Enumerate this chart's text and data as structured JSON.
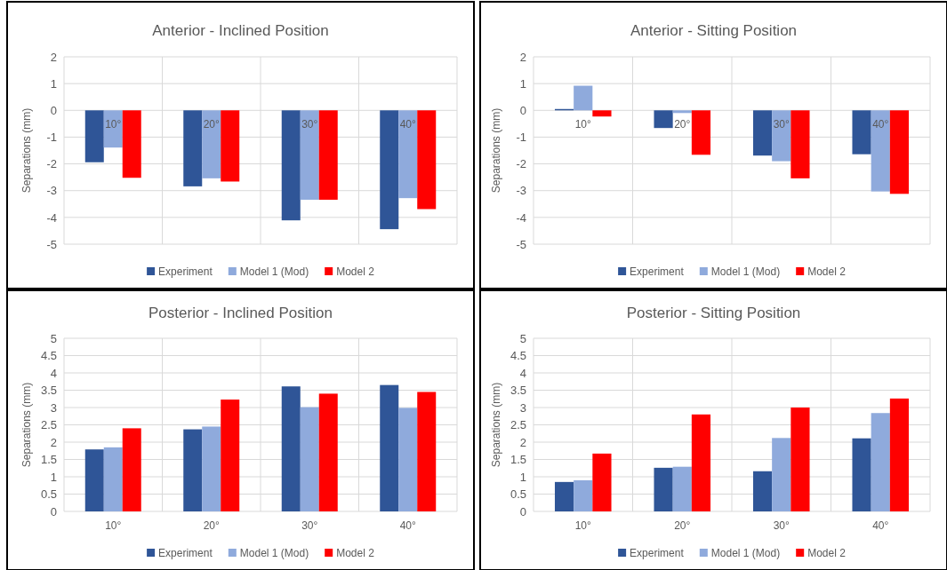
{
  "chart_data": [
    {
      "type": "bar",
      "title": "Anterior - Inclined Position",
      "ylabel": "Separations (mm)",
      "categories": [
        "10°",
        "20°",
        "30°",
        "40°"
      ],
      "ylim": [
        -5,
        2
      ],
      "yticks": [
        -5,
        -4,
        -3,
        -2,
        -1,
        0,
        1,
        2
      ],
      "grid": true,
      "legend": "bottom",
      "series": [
        {
          "name": "Experiment",
          "color": "#2f5597",
          "values": [
            -1.94,
            -2.84,
            -4.11,
            -4.44
          ]
        },
        {
          "name": "Model 1 (Mod)",
          "color": "#8faadc",
          "values": [
            -1.39,
            -2.54,
            -3.34,
            -3.28
          ]
        },
        {
          "name": "Model 2",
          "color": "#ff0000",
          "values": [
            -2.52,
            -2.66,
            -3.34,
            -3.69
          ]
        }
      ]
    },
    {
      "type": "bar",
      "title": "Anterior - Sitting Position",
      "ylabel": "Separations (mm)",
      "categories": [
        "10°",
        "20°",
        "30°",
        "40°"
      ],
      "ylim": [
        -5,
        2
      ],
      "yticks": [
        -5,
        -4,
        -3,
        -2,
        -1,
        0,
        1,
        2
      ],
      "grid": true,
      "legend": "bottom",
      "series": [
        {
          "name": "Experiment",
          "color": "#2f5597",
          "values": [
            0.05,
            -0.66,
            -1.69,
            -1.64
          ]
        },
        {
          "name": "Model 1 (Mod)",
          "color": "#8faadc",
          "values": [
            0.92,
            -0.1,
            -1.9,
            -3.03
          ]
        },
        {
          "name": "Model 2",
          "color": "#ff0000",
          "values": [
            -0.23,
            -1.66,
            -2.54,
            -3.12
          ]
        }
      ]
    },
    {
      "type": "bar",
      "title": "Posterior - Inclined Position",
      "ylabel": "Separations (mm)",
      "categories": [
        "10°",
        "20°",
        "30°",
        "40°"
      ],
      "ylim": [
        0,
        5
      ],
      "yticks": [
        0,
        0.5,
        1,
        1.5,
        2,
        2.5,
        3,
        3.5,
        4,
        4.5,
        5
      ],
      "grid": true,
      "legend": "bottom",
      "series": [
        {
          "name": "Experiment",
          "color": "#2f5597",
          "values": [
            1.79,
            2.37,
            3.61,
            3.65
          ]
        },
        {
          "name": "Model 1 (Mod)",
          "color": "#8faadc",
          "values": [
            1.85,
            2.45,
            3.01,
            2.99
          ]
        },
        {
          "name": "Model 2",
          "color": "#ff0000",
          "values": [
            2.4,
            3.23,
            3.4,
            3.45
          ]
        }
      ]
    },
    {
      "type": "bar",
      "title": "Posterior - Sitting Position",
      "ylabel": "Separations (mm)",
      "categories": [
        "10°",
        "20°",
        "30°",
        "40°"
      ],
      "ylim": [
        0,
        5
      ],
      "yticks": [
        0,
        0.5,
        1,
        1.5,
        2,
        2.5,
        3,
        3.5,
        4,
        4.5,
        5
      ],
      "grid": true,
      "legend": "bottom",
      "series": [
        {
          "name": "Experiment",
          "color": "#2f5597",
          "values": [
            0.85,
            1.26,
            1.16,
            2.11
          ]
        },
        {
          "name": "Model 1 (Mod)",
          "color": "#8faadc",
          "values": [
            0.9,
            1.29,
            2.12,
            2.84
          ]
        },
        {
          "name": "Model 2",
          "color": "#ff0000",
          "values": [
            1.67,
            2.8,
            3.0,
            3.26
          ]
        }
      ]
    }
  ]
}
